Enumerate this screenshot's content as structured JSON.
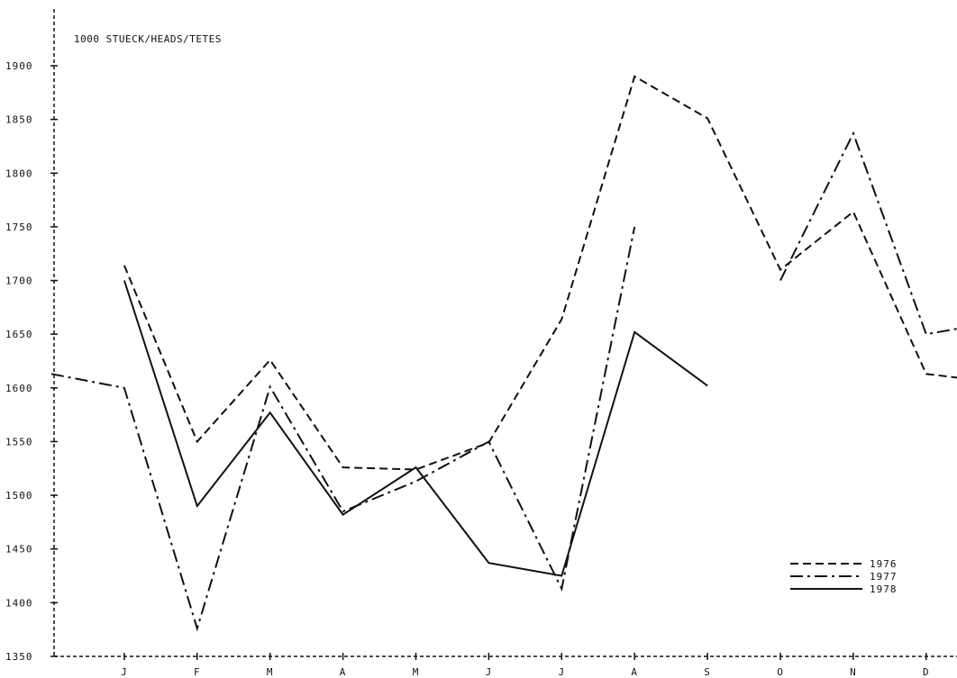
{
  "chart_data": {
    "type": "line",
    "unit_label": "1000 STUECK/HEADS/TETES",
    "title": "",
    "xlabel": "",
    "ylabel": "",
    "categories": [
      "",
      "J",
      "F",
      "M",
      "A",
      "M",
      "J",
      "J",
      "A",
      "S",
      "O",
      "N",
      "D",
      ""
    ],
    "x_tick_labels": [
      "J",
      "F",
      "M",
      "A",
      "M",
      "J",
      "J",
      "A",
      "S",
      "O",
      "N",
      "D"
    ],
    "y_ticks": [
      1350,
      1400,
      1450,
      1500,
      1550,
      1600,
      1650,
      1700,
      1750,
      1800,
      1850,
      1900
    ],
    "ylim": [
      1350,
      1900
    ],
    "grid": false,
    "legend_position": "bottom-right",
    "series": [
      {
        "name": "1976",
        "style": "dashed",
        "values": [
          null,
          1714,
          1550,
          1626,
          1526,
          1524,
          1549,
          1664,
          1890,
          1851,
          1710,
          1764,
          1613,
          1605
        ]
      },
      {
        "name": "1977",
        "style": "dash-dot",
        "values": [
          1613,
          1600,
          1376,
          1601,
          1485,
          1513,
          1550,
          1413,
          1750,
          null,
          1700,
          1837,
          1650,
          1662
        ]
      },
      {
        "name": "1978",
        "style": "solid",
        "values": [
          null,
          1700,
          1490,
          1577,
          1482,
          1526,
          1437,
          1425,
          1652,
          1602,
          null,
          null,
          null,
          null
        ]
      }
    ]
  }
}
